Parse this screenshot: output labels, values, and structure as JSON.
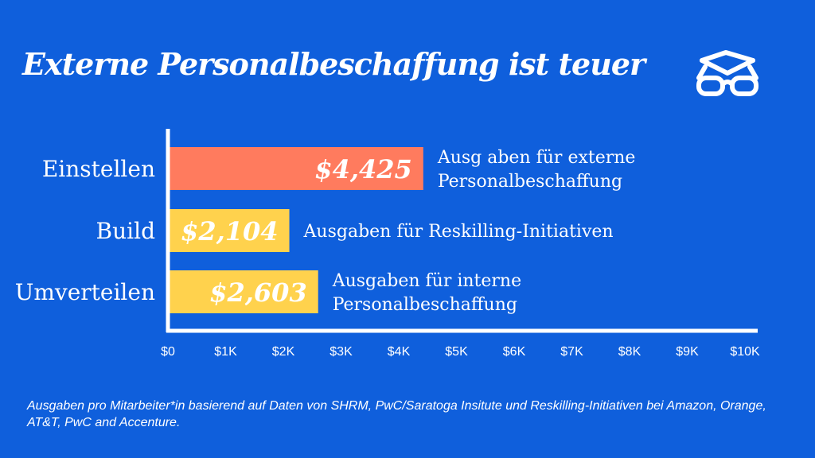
{
  "title": "Externe Personalbeschaffung ist teuer",
  "footnote": "Ausgaben pro Mitarbeiter*in basierend auf Daten von SHRM, PwC/Saratoga Insitute und Reskilling-Initiativen bei Amazon, Orange, AT&T, PwC and Accenture.",
  "logo_icon": "glasses-icon",
  "colors": {
    "background": "#0f5fdc",
    "einstellen": "#ff7b5e",
    "build": "#ffd24d",
    "umverteilen": "#ffd24d",
    "axis": "#ffffff"
  },
  "chart_data": {
    "type": "bar",
    "orientation": "horizontal",
    "categories": [
      "Einstellen",
      "Build",
      "Umverteilen"
    ],
    "values": [
      4425,
      2104,
      2603
    ],
    "value_labels": [
      "$4,425",
      "$2,104",
      "$2,603"
    ],
    "annotations": [
      [
        "Ausg aben für externe",
        "Personalbeschaffung"
      ],
      [
        "Ausgaben für Reskilling-Initiativen"
      ],
      [
        "Ausgaben für interne",
        "Personalbeschaffung"
      ]
    ],
    "xlim": [
      0,
      10000
    ],
    "xticks": [
      0,
      1000,
      2000,
      3000,
      4000,
      5000,
      6000,
      7000,
      8000,
      9000,
      10000
    ],
    "xtick_labels": [
      "$0",
      "$1K",
      "$2K",
      "$3K",
      "$4K",
      "$5K",
      "$6K",
      "$7K",
      "$8K",
      "$9K",
      "$10K"
    ],
    "grid": false
  }
}
